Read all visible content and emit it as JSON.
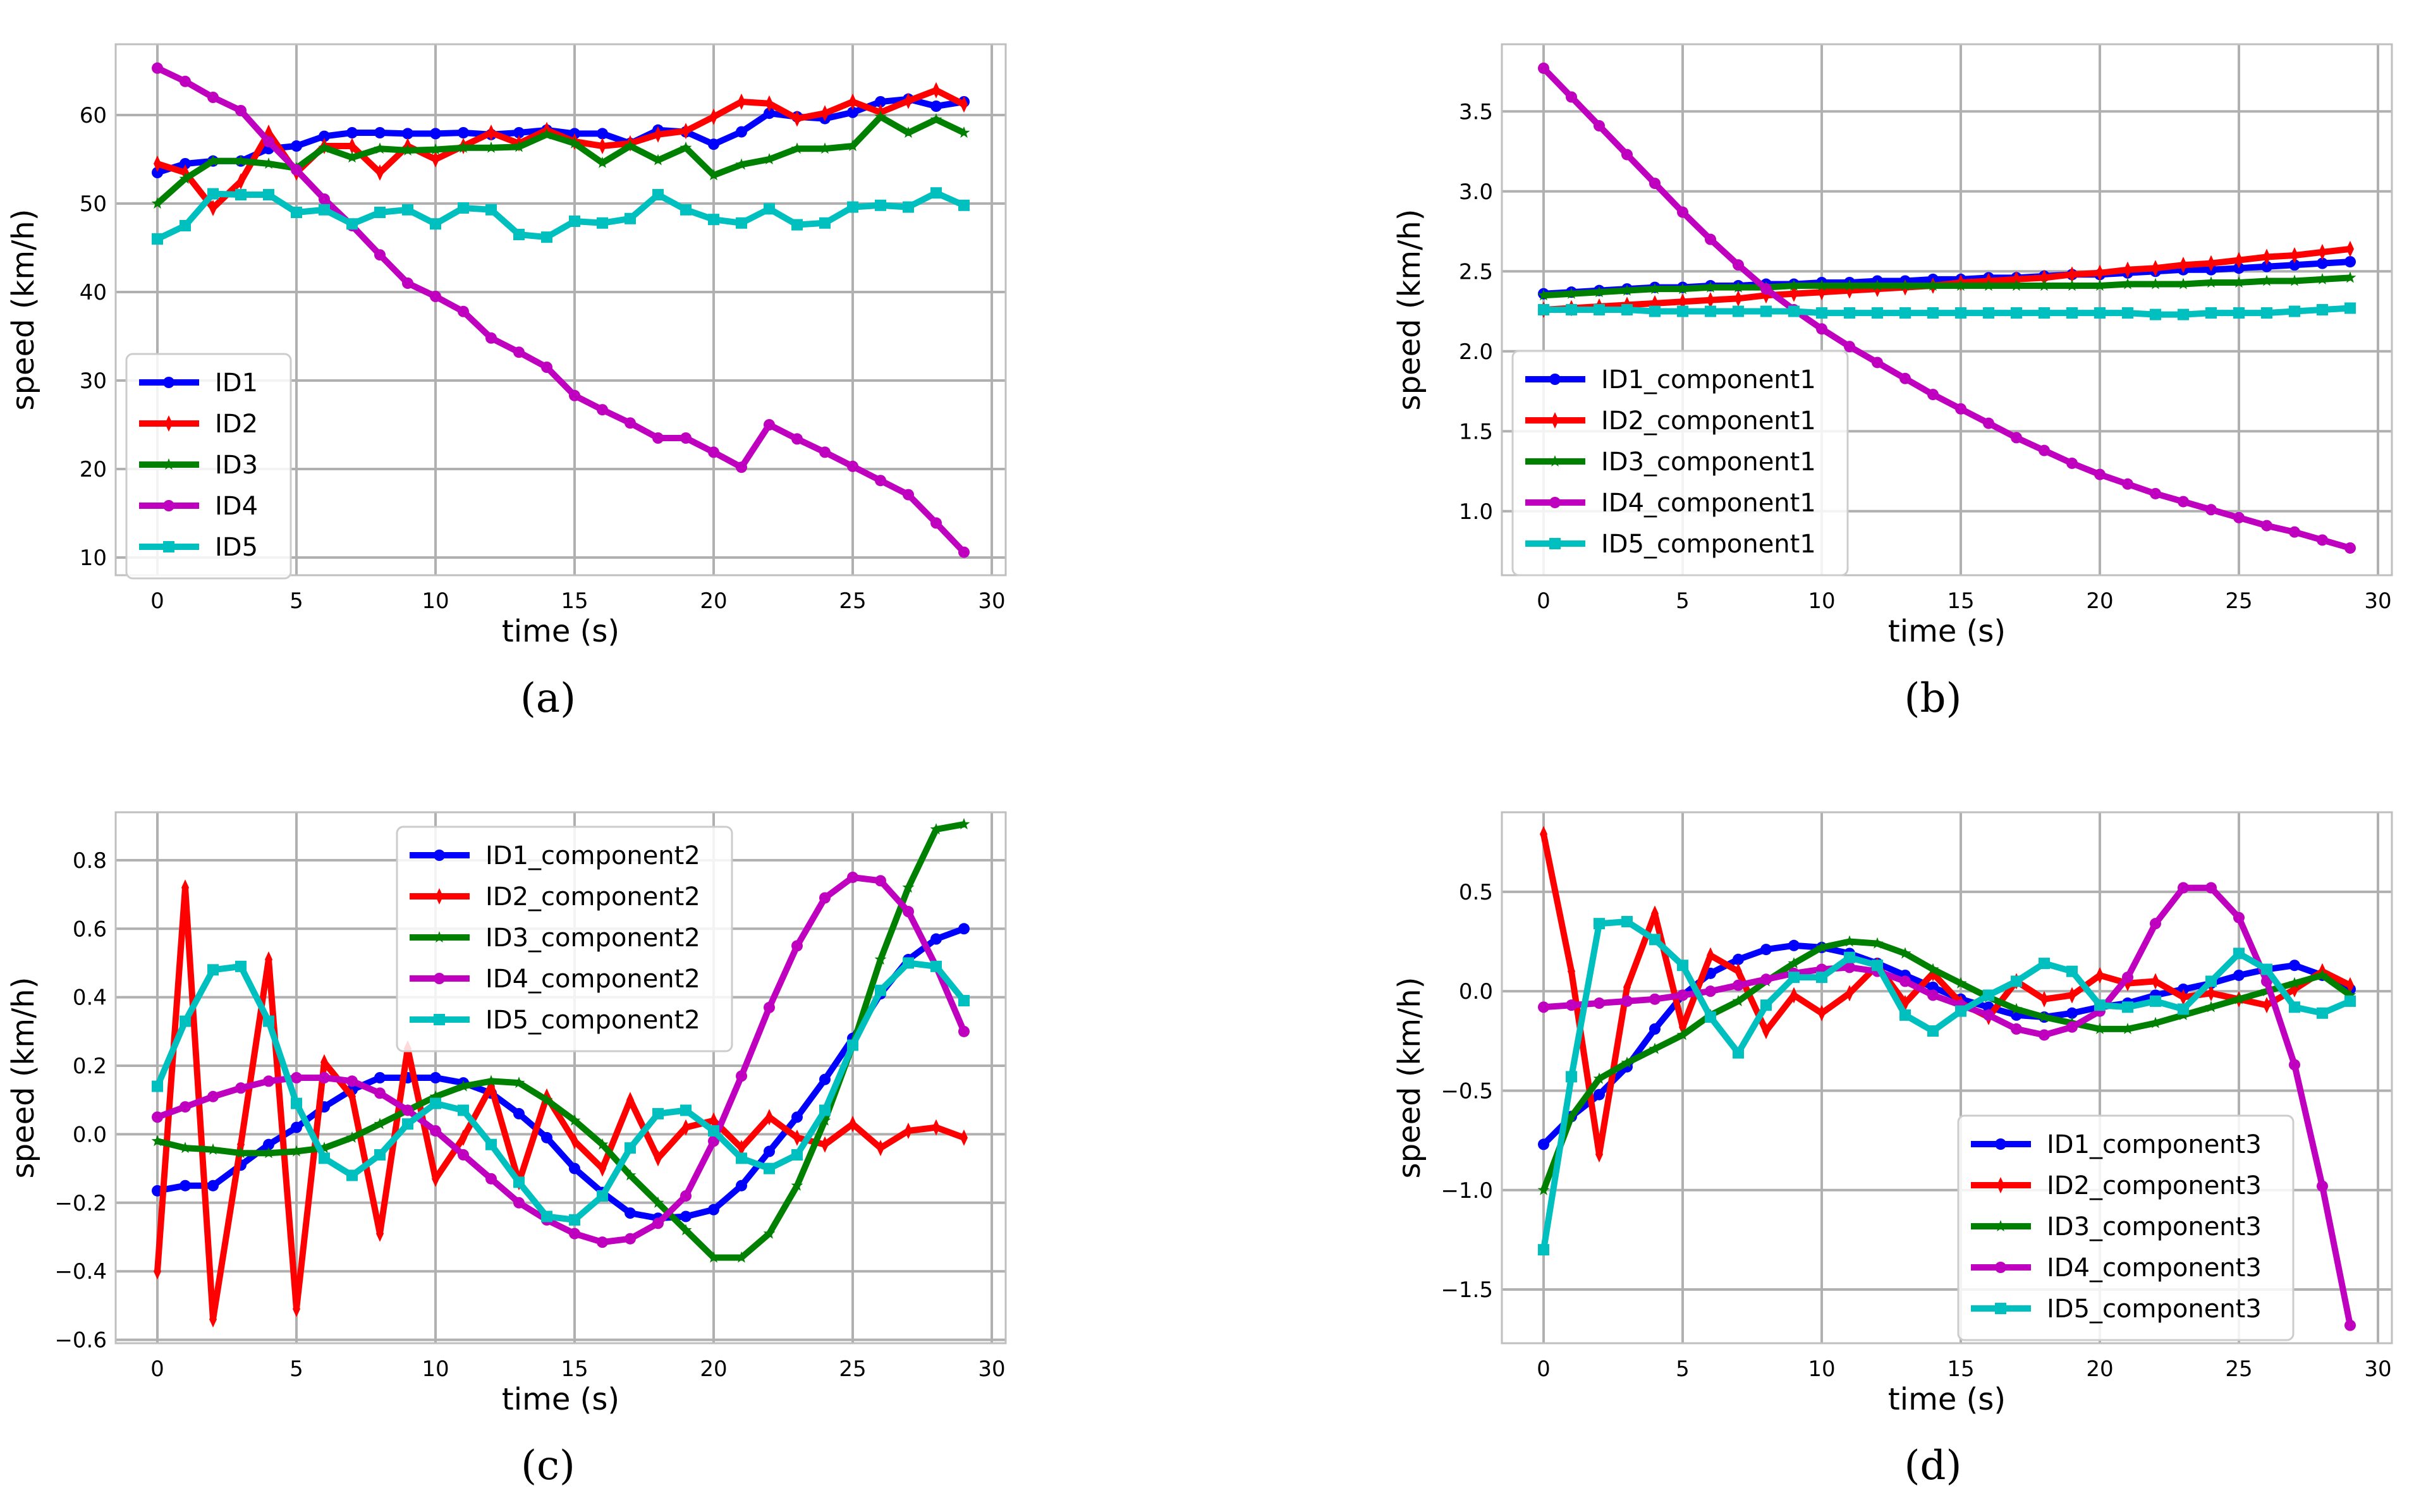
{
  "figure": {
    "panels": [
      {
        "caption": "(a)"
      },
      {
        "caption": "(b)"
      },
      {
        "caption": "(c)"
      },
      {
        "caption": "(d)"
      }
    ]
  },
  "chart_data": [
    {
      "type": "line",
      "panel": "a",
      "xlabel": "time (s)",
      "ylabel": "speed (km/h)",
      "xlim": [
        -1.5,
        30.5
      ],
      "ylim": [
        8,
        68
      ],
      "xticks": [
        0,
        5,
        10,
        15,
        20,
        25,
        30
      ],
      "yticks": [
        10,
        20,
        30,
        40,
        50,
        60
      ],
      "grid": true,
      "legend_position": "lower-left",
      "x": [
        0,
        1,
        2,
        3,
        4,
        5,
        6,
        7,
        8,
        9,
        10,
        11,
        12,
        13,
        14,
        15,
        16,
        17,
        18,
        19,
        20,
        21,
        22,
        23,
        24,
        25,
        26,
        27,
        28,
        29
      ],
      "series": [
        {
          "name": "ID1",
          "color": "#0000ff",
          "marker": "circle",
          "values": [
            53.5,
            54.5,
            54.8,
            54.8,
            56.2,
            56.5,
            57.6,
            58.0,
            58.0,
            57.9,
            57.9,
            58.0,
            57.8,
            58.0,
            58.3,
            57.9,
            57.9,
            56.8,
            58.3,
            58.1,
            56.7,
            58.1,
            60.2,
            59.8,
            59.6,
            60.3,
            61.5,
            61.8,
            61.0,
            61.5
          ]
        },
        {
          "name": "ID2",
          "color": "#ff0000",
          "marker": "diamond",
          "values": [
            54.5,
            53.5,
            49.5,
            52.5,
            58.0,
            53.5,
            56.5,
            56.5,
            53.5,
            56.5,
            55.0,
            56.5,
            58.0,
            56.8,
            58.3,
            57.0,
            56.5,
            56.8,
            57.8,
            58.2,
            59.8,
            61.5,
            61.3,
            59.6,
            60.2,
            61.5,
            60.3,
            61.6,
            62.8,
            61.2
          ]
        },
        {
          "name": "ID3",
          "color": "#008000",
          "marker": "star",
          "values": [
            50.0,
            52.8,
            54.8,
            54.8,
            54.5,
            54.0,
            56.3,
            55.2,
            56.2,
            56.0,
            56.1,
            56.3,
            56.3,
            56.4,
            57.8,
            56.8,
            54.6,
            56.5,
            54.9,
            56.3,
            53.2,
            54.4,
            55.0,
            56.2,
            56.2,
            56.5,
            59.8,
            58.0,
            59.5,
            58.0
          ]
        },
        {
          "name": "ID4",
          "color": "#bf00bf",
          "marker": "circle",
          "values": [
            65.3,
            63.8,
            62.0,
            60.5,
            57.0,
            53.8,
            50.5,
            47.5,
            44.2,
            41.0,
            39.5,
            37.8,
            34.8,
            33.2,
            31.5,
            28.3,
            26.7,
            25.2,
            23.5,
            23.5,
            21.9,
            20.2,
            25.0,
            23.4,
            21.9,
            20.3,
            18.7,
            17.1,
            13.9,
            10.6
          ]
        },
        {
          "name": "ID5",
          "color": "#00bfbf",
          "marker": "square",
          "values": [
            46.0,
            47.5,
            51.1,
            51.0,
            51.0,
            49.0,
            49.3,
            47.7,
            49.0,
            49.3,
            47.7,
            49.5,
            49.3,
            46.5,
            46.2,
            48.0,
            47.8,
            48.3,
            51.0,
            49.3,
            48.2,
            47.8,
            49.4,
            47.6,
            47.8,
            49.6,
            49.8,
            49.6,
            51.2,
            49.8
          ]
        }
      ]
    },
    {
      "type": "line",
      "panel": "b",
      "xlabel": "time (s)",
      "ylabel": "speed (km/h)",
      "xlim": [
        -1.5,
        30.5
      ],
      "ylim": [
        0.6,
        3.92
      ],
      "xticks": [
        0,
        5,
        10,
        15,
        20,
        25,
        30
      ],
      "yticks": [
        1.0,
        1.5,
        2.0,
        2.5,
        3.0,
        3.5
      ],
      "grid": true,
      "legend_position": "lower-left",
      "x": [
        0,
        1,
        2,
        3,
        4,
        5,
        6,
        7,
        8,
        9,
        10,
        11,
        12,
        13,
        14,
        15,
        16,
        17,
        18,
        19,
        20,
        21,
        22,
        23,
        24,
        25,
        26,
        27,
        28,
        29
      ],
      "series": [
        {
          "name": "ID1_component1",
          "color": "#0000ff",
          "marker": "circle",
          "values": [
            2.36,
            2.37,
            2.38,
            2.39,
            2.4,
            2.4,
            2.41,
            2.41,
            2.42,
            2.42,
            2.43,
            2.43,
            2.44,
            2.44,
            2.45,
            2.45,
            2.46,
            2.46,
            2.47,
            2.48,
            2.48,
            2.49,
            2.5,
            2.51,
            2.51,
            2.52,
            2.53,
            2.54,
            2.55,
            2.56
          ]
        },
        {
          "name": "ID2_component1",
          "color": "#ff0000",
          "marker": "diamond",
          "values": [
            2.26,
            2.27,
            2.28,
            2.29,
            2.3,
            2.31,
            2.32,
            2.33,
            2.35,
            2.36,
            2.37,
            2.38,
            2.39,
            2.4,
            2.41,
            2.43,
            2.44,
            2.45,
            2.46,
            2.48,
            2.49,
            2.51,
            2.52,
            2.54,
            2.55,
            2.57,
            2.59,
            2.6,
            2.62,
            2.64
          ]
        },
        {
          "name": "ID3_component1",
          "color": "#008000",
          "marker": "star",
          "values": [
            2.35,
            2.36,
            2.37,
            2.38,
            2.39,
            2.39,
            2.4,
            2.4,
            2.4,
            2.41,
            2.41,
            2.41,
            2.41,
            2.41,
            2.41,
            2.41,
            2.41,
            2.41,
            2.41,
            2.41,
            2.41,
            2.42,
            2.42,
            2.42,
            2.43,
            2.43,
            2.44,
            2.44,
            2.45,
            2.46
          ]
        },
        {
          "name": "ID4_component1",
          "color": "#bf00bf",
          "marker": "circle",
          "values": [
            3.77,
            3.59,
            3.41,
            3.23,
            3.05,
            2.87,
            2.7,
            2.54,
            2.39,
            2.26,
            2.14,
            2.03,
            1.93,
            1.83,
            1.73,
            1.64,
            1.55,
            1.46,
            1.38,
            1.3,
            1.23,
            1.17,
            1.11,
            1.06,
            1.01,
            0.96,
            0.91,
            0.87,
            0.82,
            0.77
          ]
        },
        {
          "name": "ID5_component1",
          "color": "#00bfbf",
          "marker": "square",
          "values": [
            2.26,
            2.26,
            2.26,
            2.26,
            2.25,
            2.25,
            2.25,
            2.25,
            2.25,
            2.25,
            2.24,
            2.24,
            2.24,
            2.24,
            2.24,
            2.24,
            2.24,
            2.24,
            2.24,
            2.24,
            2.24,
            2.24,
            2.23,
            2.23,
            2.24,
            2.24,
            2.24,
            2.25,
            2.26,
            2.27
          ]
        }
      ]
    },
    {
      "type": "line",
      "panel": "c",
      "xlabel": "time (s)",
      "ylabel": "speed (km/h)",
      "xlim": [
        -1.5,
        30.5
      ],
      "ylim": [
        -0.61,
        0.94
      ],
      "xticks": [
        0,
        5,
        10,
        15,
        20,
        25,
        30
      ],
      "yticks": [
        -0.6,
        -0.4,
        -0.2,
        0.0,
        0.2,
        0.4,
        0.6,
        0.8
      ],
      "grid": true,
      "legend_position": "upper-center",
      "x": [
        0,
        1,
        2,
        3,
        4,
        5,
        6,
        7,
        8,
        9,
        10,
        11,
        12,
        13,
        14,
        15,
        16,
        17,
        18,
        19,
        20,
        21,
        22,
        23,
        24,
        25,
        26,
        27,
        28,
        29
      ],
      "series": [
        {
          "name": "ID1_component2",
          "color": "#0000ff",
          "marker": "circle",
          "values": [
            -0.165,
            -0.15,
            -0.15,
            -0.09,
            -0.03,
            0.02,
            0.08,
            0.13,
            0.165,
            0.165,
            0.165,
            0.15,
            0.12,
            0.06,
            -0.01,
            -0.1,
            -0.17,
            -0.23,
            -0.245,
            -0.24,
            -0.22,
            -0.15,
            -0.05,
            0.05,
            0.16,
            0.28,
            0.41,
            0.51,
            0.57,
            0.6
          ]
        },
        {
          "name": "ID2_component2",
          "color": "#ff0000",
          "marker": "diamond",
          "values": [
            -0.4,
            0.72,
            -0.54,
            -0.03,
            0.51,
            -0.51,
            0.21,
            0.11,
            -0.29,
            0.25,
            -0.13,
            -0.01,
            0.14,
            -0.14,
            0.11,
            -0.02,
            -0.1,
            0.1,
            -0.07,
            0.02,
            0.04,
            -0.04,
            0.05,
            -0.01,
            -0.03,
            0.03,
            -0.04,
            0.01,
            0.02,
            -0.01
          ]
        },
        {
          "name": "ID3_component2",
          "color": "#008000",
          "marker": "star",
          "values": [
            -0.02,
            -0.04,
            -0.045,
            -0.055,
            -0.055,
            -0.05,
            -0.04,
            -0.01,
            0.03,
            0.07,
            0.11,
            0.14,
            0.155,
            0.15,
            0.1,
            0.04,
            -0.03,
            -0.12,
            -0.2,
            -0.28,
            -0.36,
            -0.36,
            -0.29,
            -0.15,
            0.04,
            0.26,
            0.51,
            0.72,
            0.89,
            0.905
          ]
        },
        {
          "name": "ID4_component2",
          "color": "#bf00bf",
          "marker": "circle",
          "values": [
            0.05,
            0.08,
            0.11,
            0.135,
            0.155,
            0.165,
            0.165,
            0.155,
            0.12,
            0.07,
            0.01,
            -0.06,
            -0.13,
            -0.2,
            -0.25,
            -0.29,
            -0.315,
            -0.305,
            -0.26,
            -0.18,
            -0.02,
            0.17,
            0.37,
            0.55,
            0.69,
            0.75,
            0.74,
            0.65,
            0.49,
            0.3
          ]
        },
        {
          "name": "ID5_component2",
          "color": "#00bfbf",
          "marker": "square",
          "values": [
            0.14,
            0.33,
            0.48,
            0.49,
            0.33,
            0.09,
            -0.07,
            -0.12,
            -0.06,
            0.03,
            0.09,
            0.07,
            -0.03,
            -0.14,
            -0.24,
            -0.25,
            -0.18,
            -0.04,
            0.06,
            0.07,
            0.01,
            -0.07,
            -0.1,
            -0.06,
            0.07,
            0.26,
            0.42,
            0.5,
            0.49,
            0.39
          ]
        }
      ]
    },
    {
      "type": "line",
      "panel": "d",
      "xlabel": "time (s)",
      "ylabel": "speed (km/h)",
      "xlim": [
        -1.5,
        30.5
      ],
      "ylim": [
        -1.77,
        0.9
      ],
      "xticks": [
        0,
        5,
        10,
        15,
        20,
        25,
        30
      ],
      "yticks": [
        -1.5,
        -1.0,
        -0.5,
        0.0,
        0.5
      ],
      "grid": true,
      "legend_position": "lower-right",
      "x": [
        0,
        1,
        2,
        3,
        4,
        5,
        6,
        7,
        8,
        9,
        10,
        11,
        12,
        13,
        14,
        15,
        16,
        17,
        18,
        19,
        20,
        21,
        22,
        23,
        24,
        25,
        26,
        27,
        28,
        29
      ],
      "series": [
        {
          "name": "ID1_component3",
          "color": "#0000ff",
          "marker": "circle",
          "values": [
            -0.77,
            -0.63,
            -0.52,
            -0.38,
            -0.19,
            -0.02,
            0.09,
            0.16,
            0.21,
            0.23,
            0.22,
            0.19,
            0.14,
            0.08,
            0.02,
            -0.04,
            -0.08,
            -0.12,
            -0.13,
            -0.11,
            -0.08,
            -0.06,
            -0.02,
            0.01,
            0.04,
            0.08,
            0.11,
            0.13,
            0.08,
            0.01
          ]
        },
        {
          "name": "ID2_component3",
          "color": "#ff0000",
          "marker": "diamond",
          "values": [
            0.79,
            0.1,
            -0.82,
            0.02,
            0.39,
            -0.18,
            0.18,
            0.1,
            -0.2,
            -0.02,
            -0.11,
            -0.01,
            0.13,
            -0.06,
            0.09,
            -0.06,
            -0.13,
            0.05,
            -0.04,
            -0.02,
            0.08,
            0.04,
            0.05,
            -0.03,
            -0.01,
            -0.04,
            -0.07,
            0.01,
            0.1,
            0.03
          ]
        },
        {
          "name": "ID3_component3",
          "color": "#008000",
          "marker": "star",
          "values": [
            -1.0,
            -0.63,
            -0.44,
            -0.36,
            -0.29,
            -0.22,
            -0.12,
            -0.05,
            0.05,
            0.14,
            0.22,
            0.25,
            0.24,
            0.19,
            0.11,
            0.04,
            -0.03,
            -0.09,
            -0.13,
            -0.16,
            -0.19,
            -0.19,
            -0.16,
            -0.12,
            -0.08,
            -0.04,
            0.0,
            0.04,
            0.08,
            -0.02
          ]
        },
        {
          "name": "ID4_component3",
          "color": "#bf00bf",
          "marker": "circle",
          "values": [
            -0.08,
            -0.07,
            -0.06,
            -0.05,
            -0.04,
            -0.02,
            0.0,
            0.03,
            0.06,
            0.09,
            0.11,
            0.12,
            0.1,
            0.05,
            -0.02,
            -0.07,
            -0.12,
            -0.19,
            -0.22,
            -0.18,
            -0.1,
            0.07,
            0.34,
            0.52,
            0.52,
            0.37,
            0.05,
            -0.37,
            -0.98,
            -1.68
          ]
        },
        {
          "name": "ID5_component3",
          "color": "#00bfbf",
          "marker": "square",
          "values": [
            -1.3,
            -0.43,
            0.34,
            0.35,
            0.26,
            0.13,
            -0.13,
            -0.31,
            -0.07,
            0.07,
            0.07,
            0.17,
            0.13,
            -0.12,
            -0.2,
            -0.1,
            -0.02,
            0.05,
            0.14,
            0.1,
            -0.07,
            -0.08,
            -0.05,
            -0.09,
            0.05,
            0.19,
            0.11,
            -0.08,
            -0.11,
            -0.05
          ]
        }
      ]
    }
  ]
}
